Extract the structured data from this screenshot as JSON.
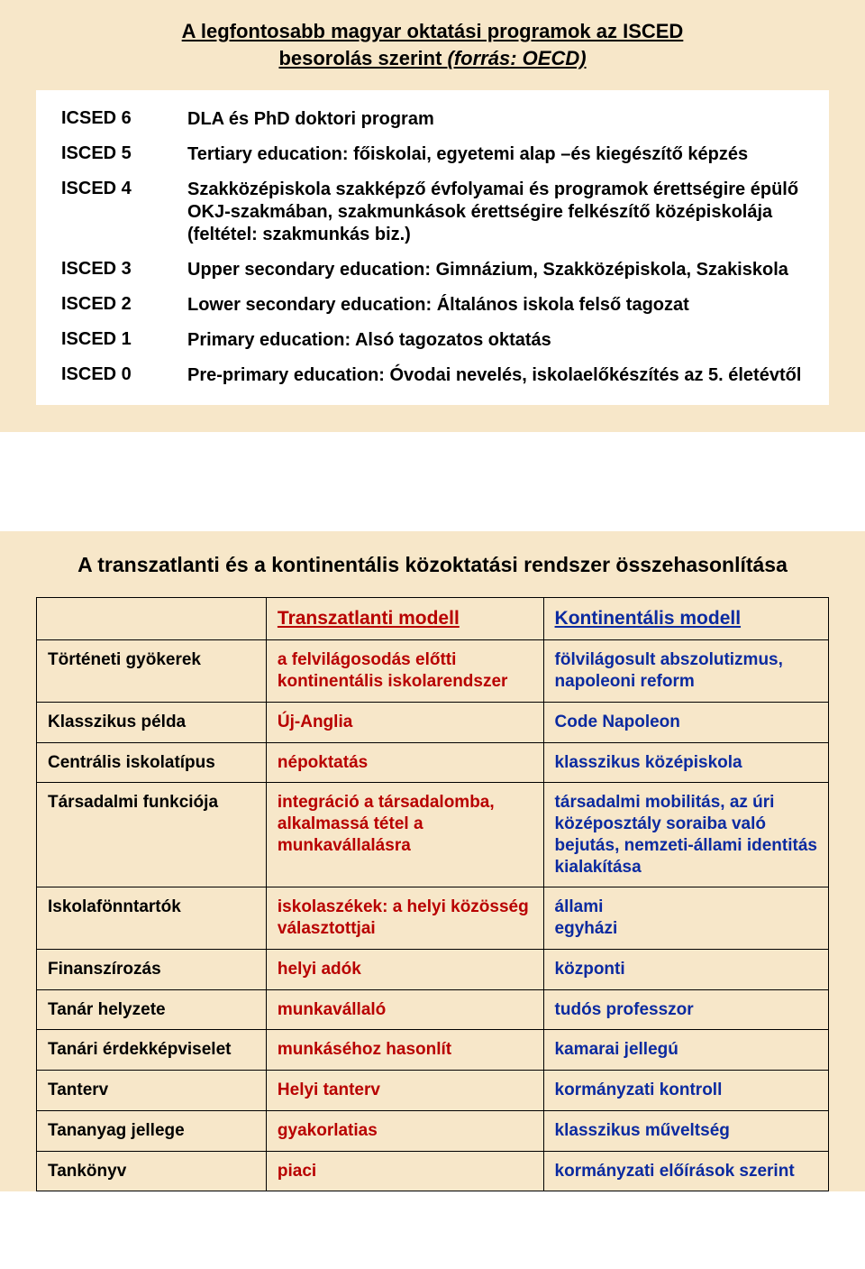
{
  "colors": {
    "panel_bg": "#f7e7c9",
    "inner_bg": "#ffffff",
    "text": "#000000",
    "trans": "#b80000",
    "kont": "#0b2aa0"
  },
  "panel1": {
    "title_line1": "A legfontosabb magyar oktatási programok az ISCED",
    "title_line2_a": "besorolás szerint ",
    "title_line2_b": "(forrás: OECD)",
    "rows": [
      {
        "level": "ICSED 6",
        "desc": "DLA és PhD doktori program"
      },
      {
        "level": "ISCED 5",
        "desc": "Tertiary education: főiskolai, egyetemi alap –és kiegészítő képzés"
      },
      {
        "level": "ISCED 4",
        "desc": "Szakközépiskola szakképző évfolyamai és programok érettségire épülő OKJ-szakmában, szakmunkások érettségire felkészítő középiskolája (feltétel: szakmunkás  biz.)"
      },
      {
        "level": "ISCED 3",
        "desc": "Upper secondary education: Gimnázium, Szakközépiskola, Szakiskola"
      },
      {
        "level": "ISCED 2",
        "desc": "Lower secondary education: Általános iskola felső tagozat"
      },
      {
        "level": "ISCED 1",
        "desc": "Primary education: Alsó tagozatos oktatás"
      },
      {
        "level": "ISCED 0",
        "desc": "Pre-primary education: Óvodai nevelés, iskolaelőkészítés az 5. életévtől"
      }
    ]
  },
  "panel2": {
    "title": "A transzatlanti és a kontinentális közoktatási rendszer összehasonlítása",
    "header_trans": "Transzatlanti modell",
    "header_kont": "Kontinentális modell",
    "rows": [
      {
        "label": "Történeti gyökerek",
        "trans": "a felvilágosodás előtti kontinentális iskolarendszer",
        "kont": "fölvilágosult abszolutizmus, napoleoni reform"
      },
      {
        "label": "Klasszikus példa",
        "trans": "Új-Anglia",
        "kont": "Code Napoleon"
      },
      {
        "label": "Centrális iskolatípus",
        "trans": "népoktatás",
        "kont": "klasszikus középiskola"
      },
      {
        "label": "Társadalmi funkciója",
        "trans": "integráció a társadalomba, alkalmassá tétel a munkavállalásra",
        "kont": "társadalmi mobilitás, az úri középosztály soraiba való bejutás, nemzeti-állami identitás kialakítása"
      },
      {
        "label": "Iskolafönntartók",
        "trans": "iskolaszékek: a helyi közösség választottjai",
        "kont": "állami\negyházi"
      },
      {
        "label": "Finanszírozás",
        "trans": "helyi adók",
        "kont": "központi"
      },
      {
        "label": "Tanár helyzete",
        "trans": "munkavállaló",
        "kont": "tudós professzor"
      },
      {
        "label": "Tanári érdekképviselet",
        "trans": "munkáséhoz hasonlít",
        "kont": "kamarai jellegú"
      },
      {
        "label": "Tanterv",
        "trans": "Helyi tanterv",
        "kont": "kormányzati kontroll"
      },
      {
        "label": "Tananyag jellege",
        "trans": "gyakorlatias",
        "kont": "klasszikus műveltség"
      },
      {
        "label": "Tankönyv",
        "trans": "piaci",
        "kont": "kormányzati előírások szerint"
      }
    ]
  }
}
